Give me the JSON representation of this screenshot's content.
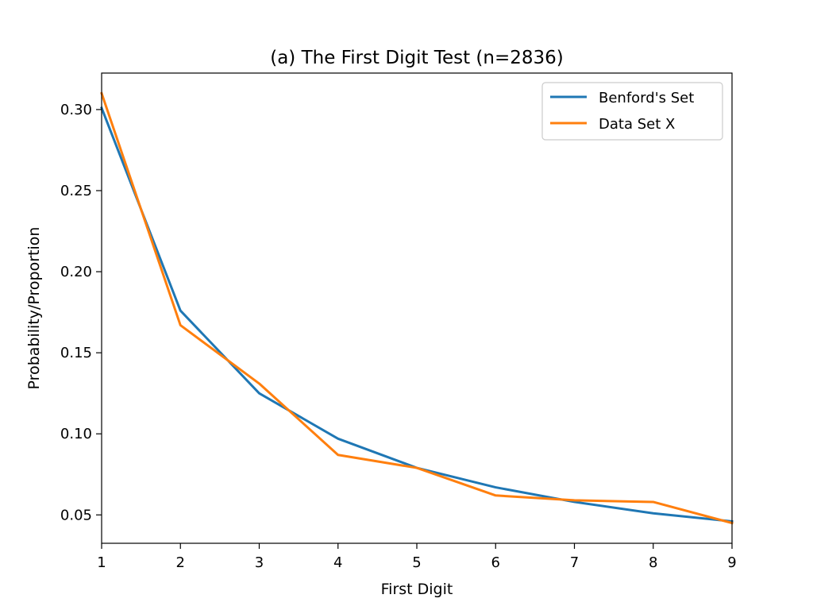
{
  "chart_data": {
    "type": "line",
    "title": "(a) The First Digit Test (n=2836)",
    "xlabel": "First Digit",
    "ylabel": "Probability/Proportion",
    "x": [
      1,
      2,
      3,
      4,
      5,
      6,
      7,
      8,
      9
    ],
    "xlim": [
      1,
      9
    ],
    "ylim": [
      0.0325,
      0.3225
    ],
    "xticks": [
      1,
      2,
      3,
      4,
      5,
      6,
      7,
      8,
      9
    ],
    "yticks": [
      0.05,
      0.1,
      0.15,
      0.2,
      0.25,
      0.3
    ],
    "ytick_labels": [
      "0.05",
      "0.10",
      "0.15",
      "0.20",
      "0.25",
      "0.30"
    ],
    "grid": false,
    "legend_position": "top-right",
    "series": [
      {
        "name": "Benford's Set",
        "color": "#1f77b4",
        "values": [
          0.301,
          0.176,
          0.125,
          0.097,
          0.079,
          0.067,
          0.058,
          0.051,
          0.046
        ]
      },
      {
        "name": "Data Set X",
        "color": "#ff7f0e",
        "values": [
          0.31,
          0.167,
          0.131,
          0.087,
          0.079,
          0.062,
          0.059,
          0.058,
          0.045
        ]
      }
    ]
  }
}
